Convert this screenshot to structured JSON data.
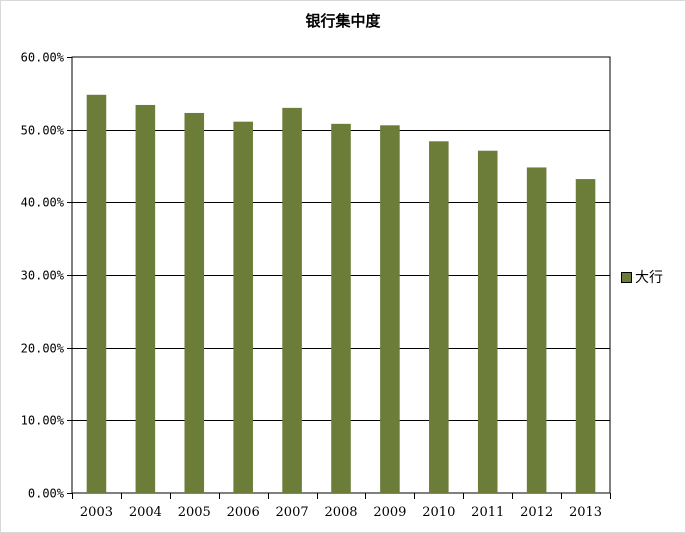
{
  "chart_data": {
    "type": "bar",
    "title": "银行集中度",
    "categories": [
      "2003",
      "2004",
      "2005",
      "2006",
      "2007",
      "2008",
      "2009",
      "2010",
      "2011",
      "2012",
      "2013"
    ],
    "series": [
      {
        "name": "大行",
        "values": [
          54.8,
          53.4,
          52.3,
          51.1,
          53.0,
          50.8,
          50.6,
          48.4,
          47.1,
          44.8,
          43.2
        ],
        "color": "#6b7d38"
      }
    ],
    "ylim": [
      0,
      60
    ],
    "yticks": [
      "0.00%",
      "10.00%",
      "20.00%",
      "30.00%",
      "40.00%",
      "50.00%",
      "60.00%"
    ],
    "ytick_values": [
      0,
      10,
      20,
      30,
      40,
      50,
      60
    ],
    "grid": true,
    "legend": "right"
  }
}
